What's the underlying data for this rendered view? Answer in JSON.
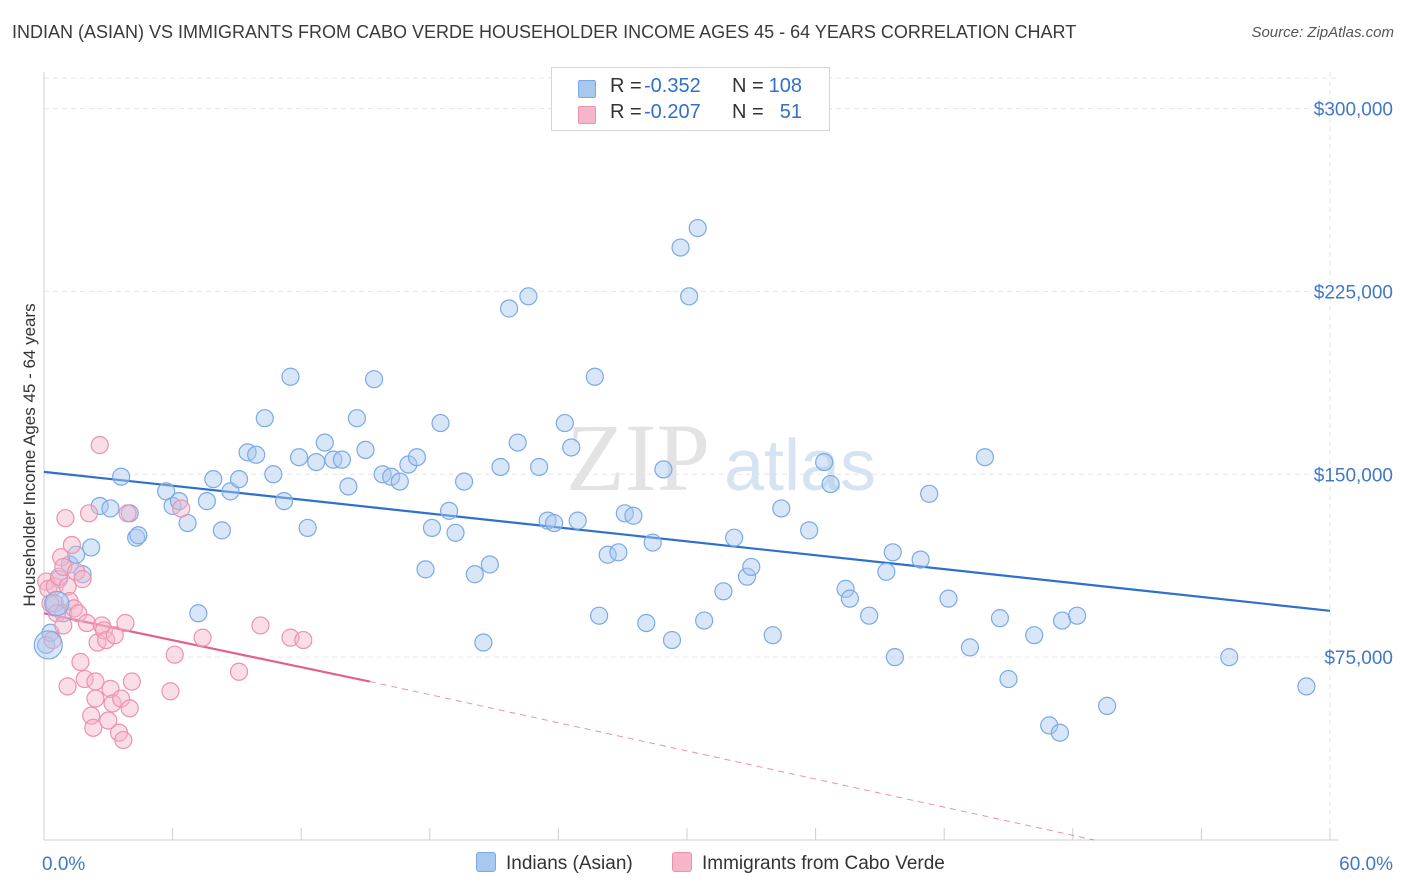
{
  "header": {
    "title": "INDIAN (ASIAN) VS IMMIGRANTS FROM CABO VERDE HOUSEHOLDER INCOME AGES 45 - 64 YEARS CORRELATION CHART",
    "source": "Source: ZipAtlas.com"
  },
  "watermark": {
    "zip": "ZIP",
    "atlas": "atlas"
  },
  "legend": {
    "rows": [
      {
        "r_label": "R =",
        "r_value": "-0.352",
        "n_label": "N =",
        "n_value": "108",
        "color": "#a9c8ef"
      },
      {
        "r_label": "R =",
        "r_value": "-0.207",
        "n_label": "N =",
        "n_value": "51",
        "color": "#f5b6c9"
      }
    ]
  },
  "chart_data": {
    "type": "scatter",
    "title": "INDIAN (ASIAN) VS IMMIGRANTS FROM CABO VERDE HOUSEHOLDER INCOME AGES 45 - 64 YEARS CORRELATION CHART",
    "xlabel": "",
    "ylabel": "Householder Income Ages 45 - 64 years",
    "xlim": [
      0,
      60
    ],
    "ylim": [
      0,
      315000
    ],
    "x_tick_labels": [
      "0.0%",
      "60.0%"
    ],
    "y_tick_values": [
      75000,
      150000,
      225000,
      300000
    ],
    "y_tick_labels": [
      "$75,000",
      "$150,000",
      "$225,000",
      "$300,000"
    ],
    "grid": true,
    "legend_position": "top-center",
    "series": [
      {
        "name": "Indians (Asian)",
        "color": "#7aaae6",
        "fill": "#a9c8ef",
        "trend": {
          "x0": 0,
          "y0": 151000,
          "x1": 60,
          "y1": 94000
        },
        "points": [
          [
            0.1,
            80000
          ],
          [
            0.3,
            85000
          ],
          [
            0.5,
            97000
          ],
          [
            0.7,
            107000
          ],
          [
            0.9,
            93000
          ],
          [
            1.2,
            113000
          ],
          [
            1.5,
            117000
          ],
          [
            1.8,
            109000
          ],
          [
            2.2,
            120000
          ],
          [
            2.6,
            137000
          ],
          [
            3.1,
            136000
          ],
          [
            3.6,
            149000
          ],
          [
            4.0,
            134000
          ],
          [
            4.3,
            124000
          ],
          [
            4.4,
            125000
          ],
          [
            5.7,
            143000
          ],
          [
            6.0,
            137000
          ],
          [
            6.3,
            139000
          ],
          [
            6.7,
            130000
          ],
          [
            7.2,
            93000
          ],
          [
            7.6,
            139000
          ],
          [
            7.9,
            148000
          ],
          [
            8.3,
            127000
          ],
          [
            8.7,
            143000
          ],
          [
            9.1,
            148000
          ],
          [
            9.5,
            159000
          ],
          [
            9.9,
            158000
          ],
          [
            10.3,
            173000
          ],
          [
            10.7,
            150000
          ],
          [
            11.2,
            139000
          ],
          [
            11.5,
            190000
          ],
          [
            11.9,
            157000
          ],
          [
            12.3,
            128000
          ],
          [
            12.7,
            155000
          ],
          [
            13.1,
            163000
          ],
          [
            13.5,
            156000
          ],
          [
            13.9,
            156000
          ],
          [
            14.2,
            145000
          ],
          [
            14.6,
            173000
          ],
          [
            15.0,
            160000
          ],
          [
            15.4,
            189000
          ],
          [
            15.8,
            150000
          ],
          [
            16.2,
            149000
          ],
          [
            16.6,
            147000
          ],
          [
            17.0,
            154000
          ],
          [
            17.4,
            157000
          ],
          [
            17.8,
            111000
          ],
          [
            18.1,
            128000
          ],
          [
            18.5,
            171000
          ],
          [
            18.9,
            135000
          ],
          [
            19.2,
            126000
          ],
          [
            19.6,
            147000
          ],
          [
            20.1,
            109000
          ],
          [
            20.5,
            81000
          ],
          [
            20.8,
            113000
          ],
          [
            21.3,
            153000
          ],
          [
            21.7,
            218000
          ],
          [
            22.1,
            163000
          ],
          [
            22.6,
            223000
          ],
          [
            23.1,
            153000
          ],
          [
            23.5,
            131000
          ],
          [
            23.8,
            130000
          ],
          [
            24.3,
            171000
          ],
          [
            24.6,
            161000
          ],
          [
            24.9,
            131000
          ],
          [
            25.7,
            190000
          ],
          [
            25.9,
            92000
          ],
          [
            26.3,
            117000
          ],
          [
            26.8,
            118000
          ],
          [
            27.1,
            134000
          ],
          [
            27.5,
            133000
          ],
          [
            28.1,
            89000
          ],
          [
            28.4,
            122000
          ],
          [
            28.9,
            152000
          ],
          [
            29.3,
            82000
          ],
          [
            29.7,
            243000
          ],
          [
            30.1,
            223000
          ],
          [
            30.5,
            251000
          ],
          [
            30.8,
            90000
          ],
          [
            31.7,
            102000
          ],
          [
            32.2,
            124000
          ],
          [
            32.8,
            108000
          ],
          [
            33.0,
            112000
          ],
          [
            34.0,
            84000
          ],
          [
            34.4,
            136000
          ],
          [
            35.7,
            127000
          ],
          [
            36.4,
            155000
          ],
          [
            36.7,
            146000
          ],
          [
            37.4,
            103000
          ],
          [
            37.6,
            99000
          ],
          [
            38.5,
            92000
          ],
          [
            39.3,
            110000
          ],
          [
            39.6,
            118000
          ],
          [
            39.7,
            75000
          ],
          [
            40.9,
            115000
          ],
          [
            41.3,
            142000
          ],
          [
            42.2,
            99000
          ],
          [
            43.2,
            79000
          ],
          [
            43.9,
            157000
          ],
          [
            44.6,
            91000
          ],
          [
            45.0,
            66000
          ],
          [
            46.2,
            84000
          ],
          [
            46.9,
            47000
          ],
          [
            47.4,
            44000
          ],
          [
            47.5,
            90000
          ],
          [
            48.2,
            92000
          ],
          [
            49.6,
            55000
          ],
          [
            55.3,
            75000
          ],
          [
            58.9,
            63000
          ]
        ]
      },
      {
        "name": "Immigrants from Cabo Verde",
        "color": "#ee91ad",
        "fill": "#f5b6c9",
        "trend": {
          "x0": 0,
          "y0": 93000,
          "x1": 15.2,
          "y1": 65000
        },
        "trend_extension": {
          "x0": 15.2,
          "y0": 65000,
          "x1": 49.0,
          "y1": 0
        },
        "points": [
          [
            0.1,
            106000
          ],
          [
            0.2,
            103000
          ],
          [
            0.3,
            97000
          ],
          [
            0.4,
            82000
          ],
          [
            0.5,
            104000
          ],
          [
            0.6,
            93000
          ],
          [
            0.7,
            108000
          ],
          [
            0.8,
            116000
          ],
          [
            0.9,
            112000
          ],
          [
            1.0,
            132000
          ],
          [
            1.1,
            104000
          ],
          [
            1.2,
            98000
          ],
          [
            1.3,
            121000
          ],
          [
            1.4,
            95000
          ],
          [
            1.5,
            110000
          ],
          [
            1.6,
            93000
          ],
          [
            1.7,
            73000
          ],
          [
            1.8,
            107000
          ],
          [
            1.9,
            66000
          ],
          [
            2.0,
            89000
          ],
          [
            2.1,
            134000
          ],
          [
            2.2,
            51000
          ],
          [
            2.3,
            46000
          ],
          [
            2.4,
            65000
          ],
          [
            2.5,
            81000
          ],
          [
            2.6,
            162000
          ],
          [
            2.7,
            88000
          ],
          [
            2.8,
            86000
          ],
          [
            2.9,
            82000
          ],
          [
            3.0,
            49000
          ],
          [
            3.1,
            62000
          ],
          [
            3.2,
            56000
          ],
          [
            3.3,
            84000
          ],
          [
            3.5,
            44000
          ],
          [
            3.6,
            58000
          ],
          [
            3.7,
            41000
          ],
          [
            3.8,
            89000
          ],
          [
            3.9,
            134000
          ],
          [
            4.0,
            54000
          ],
          [
            4.1,
            65000
          ],
          [
            5.9,
            61000
          ],
          [
            6.1,
            76000
          ],
          [
            6.4,
            136000
          ],
          [
            7.4,
            83000
          ],
          [
            9.1,
            69000
          ],
          [
            10.1,
            88000
          ],
          [
            11.5,
            83000
          ],
          [
            12.1,
            82000
          ],
          [
            2.4,
            58000
          ],
          [
            1.1,
            63000
          ],
          [
            0.9,
            88000
          ]
        ]
      }
    ]
  },
  "bottom_legend": {
    "items": [
      {
        "label": "Indians (Asian)",
        "color": "#a9c8ef"
      },
      {
        "label": "Immigrants from Cabo Verde",
        "color": "#f5b6c9"
      }
    ]
  }
}
